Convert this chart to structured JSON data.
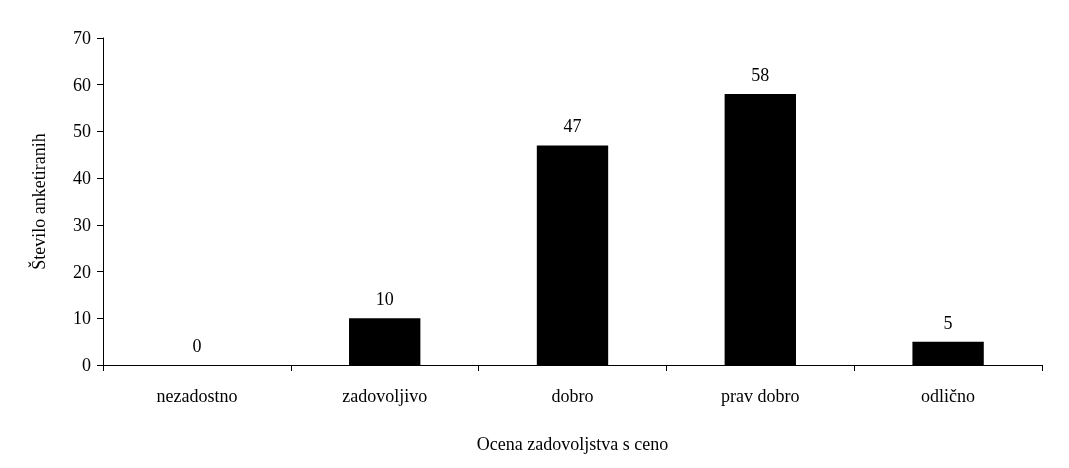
{
  "chart_data": {
    "type": "bar",
    "xlabel": "Ocena zadovoljstva s ceno",
    "ylabel": "Število anketiranih",
    "categories": [
      "nezadostno",
      "zadovoljivo",
      "dobro",
      "prav dobro",
      "odlično"
    ],
    "values": [
      0,
      10,
      47,
      58,
      5
    ],
    "color": "#000000",
    "ylim": [
      0,
      70
    ],
    "yticks": [
      0,
      10,
      20,
      30,
      40,
      50,
      60,
      70
    ],
    "grid": false,
    "data_labels": true
  }
}
